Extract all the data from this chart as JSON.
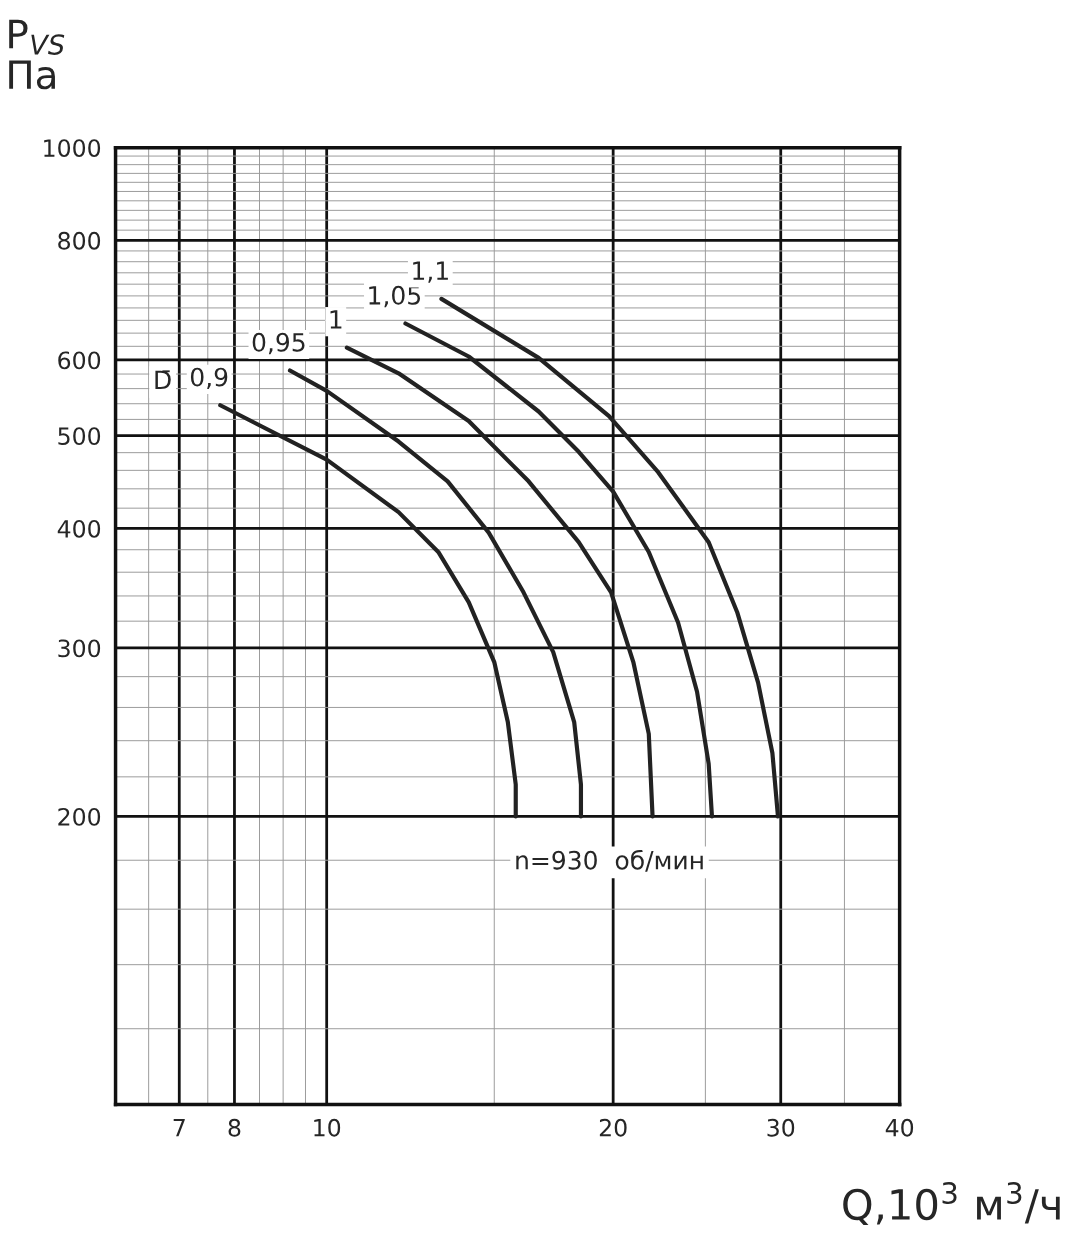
{
  "chart_data": {
    "type": "line",
    "ylabel": "P$_{VS}$\nПа",
    "xlabel": "Q,10$^{3}$ м$^{3}$/ч",
    "log": "xy",
    "xlim": [
      6,
      40
    ],
    "ylim": [
      100,
      1000
    ],
    "xticks": [
      7,
      8,
      10,
      20,
      30,
      40
    ],
    "yticks": [
      200,
      300,
      400,
      500,
      600,
      800,
      1000
    ],
    "grid": true,
    "legend": false,
    "marker": "none",
    "line_style": "solid",
    "series": [
      {
        "name": "0,9",
        "color": "#222222",
        "x": [
          7.73,
          10,
          11.9,
          13.1,
          14.1,
          15.0,
          15.5,
          15.8,
          15.8
        ],
        "values": [
          538,
          472,
          416,
          378,
          335,
          290,
          251,
          216,
          200
        ]
      },
      {
        "name": "0,95",
        "color": "#222222",
        "x": [
          9.15,
          10,
          11.9,
          13.4,
          14.8,
          16.1,
          17.3,
          18.2,
          18.5,
          18.5
        ],
        "values": [
          585,
          557,
          493,
          448,
          396,
          343,
          297,
          251,
          216,
          200
        ]
      },
      {
        "name": "1",
        "color": "#222222",
        "x": [
          10.5,
          11.9,
          14.1,
          16.3,
          18.4,
          19.9,
          21.0,
          21.8,
          22.0
        ],
        "values": [
          618,
          581,
          518,
          448,
          387,
          343,
          290,
          244,
          200
        ]
      },
      {
        "name": "1,05",
        "color": "#222222",
        "x": [
          12.1,
          14.1,
          16.7,
          18.4,
          20,
          21.8,
          23.4,
          24.5,
          25.2,
          25.4
        ],
        "values": [
          655,
          605,
          530,
          481,
          437,
          378,
          319,
          270,
          227,
          200
        ]
      },
      {
        "name": "1,1",
        "color": "#222222",
        "x": [
          13.2,
          16.7,
          19.8,
          22.3,
          25.2,
          27.0,
          28.4,
          29.4,
          29.8
        ],
        "values": [
          695,
          603,
          524,
          458,
          387,
          327,
          276,
          233,
          200
        ]
      }
    ],
    "annotations": [
      "D̄",
      "n=930  об/мин"
    ]
  }
}
